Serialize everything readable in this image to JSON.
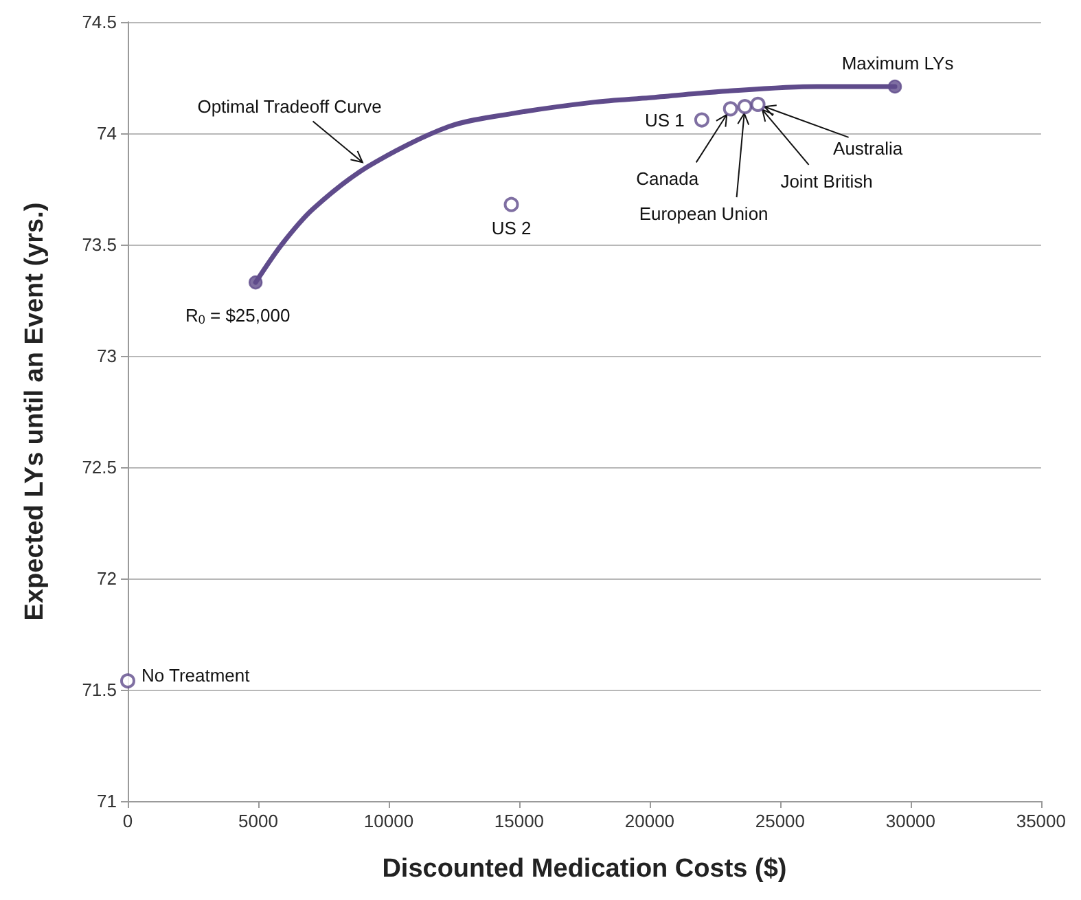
{
  "chart_data": {
    "type": "scatter",
    "xlabel": "Discounted Medication Costs ($)",
    "ylabel": "Expected LYs until an Event (yrs.)",
    "xlim": [
      0,
      35000
    ],
    "xticks": [
      0,
      5000,
      10000,
      15000,
      20000,
      25000,
      30000,
      35000
    ],
    "ylim": [
      71,
      74.5
    ],
    "yticks": [
      71,
      71.5,
      72,
      72.5,
      73,
      73.5,
      74,
      74.5
    ],
    "grid": "y",
    "series": [
      {
        "type": "line",
        "color": "#5f4b8b",
        "x": [
          4900,
          5900,
          7100,
          9200,
          12300,
          14800,
          17900,
          20000,
          23000,
          26400,
          29400
        ],
        "values": [
          73.33,
          73.5,
          73.66,
          73.85,
          74.03,
          74.09,
          74.14,
          74.16,
          74.19,
          74.21,
          74.21
        ]
      },
      {
        "color": "#5f4b8b",
        "marker": "circle",
        "x": [
          4900,
          29400
        ],
        "values": [
          73.33,
          74.21
        ]
      },
      {
        "color": "#5f4b8b",
        "x": [
          0,
          14700,
          22000,
          23100,
          23650,
          24150
        ],
        "values": [
          71.54,
          73.68,
          74.06,
          74.11,
          74.12,
          74.13
        ]
      }
    ],
    "annotations": [
      {
        "text": "Optimal Tradeoff Curve",
        "x": 9200,
        "y": 73.85
      },
      {
        "text": "R$_{0}$ = $25,000",
        "x": 4900,
        "y": 73.33
      },
      {
        "text": "US 2",
        "x": 14700,
        "y": 73.68
      },
      {
        "text": "US 1",
        "x": 22000,
        "y": 74.06
      },
      {
        "text": "Canada",
        "x": 23100,
        "y": 74.11
      },
      {
        "text": "European Union",
        "x": 23650,
        "y": 74.12
      },
      {
        "text": "Joint British",
        "x": 24150,
        "y": 74.13
      },
      {
        "text": "Australia",
        "x": 24150,
        "y": 74.13
      },
      {
        "text": "Maximum LYs",
        "x": 29400,
        "y": 74.21
      },
      {
        "text": "No Treatment",
        "x": 0,
        "y": 71.54
      }
    ]
  }
}
